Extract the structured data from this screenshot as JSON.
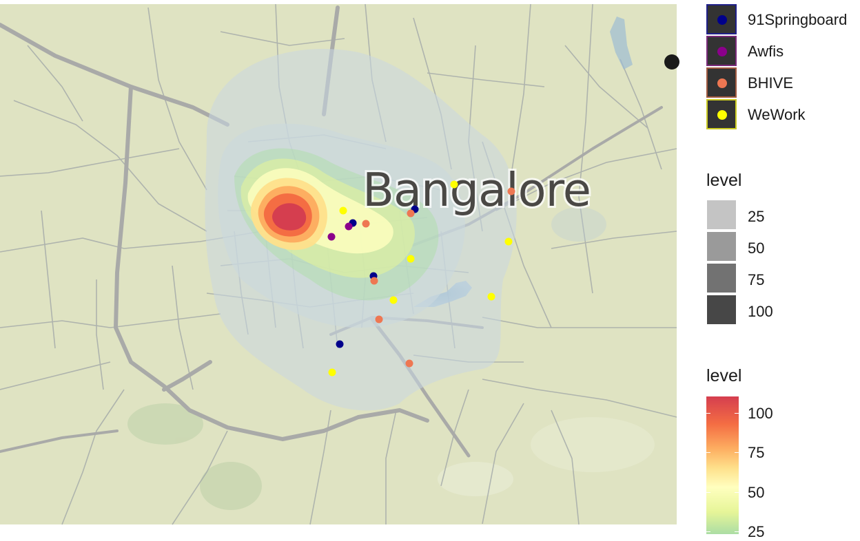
{
  "map": {
    "city_label": "Bangalore",
    "colors": {
      "land": "#dfe3c2",
      "road": "#9ea4a6",
      "highway": "#a9aaa8",
      "water": "#9cbcd3"
    }
  },
  "points": {
    "series": [
      {
        "name": "91Springboard",
        "color": "#00008b",
        "border": "#20208a"
      },
      {
        "name": "Awfis",
        "color": "#8b008b",
        "border": "#7a2a7a"
      },
      {
        "name": "BHIVE",
        "color": "#ee7752",
        "border": "#a15a40"
      },
      {
        "name": "WeWork",
        "color": "#ffff00",
        "border": "#cccc22"
      }
    ]
  },
  "legends": {
    "series": {
      "items": [
        "91Springboard",
        "Awfis",
        "BHIVE",
        "WeWork"
      ]
    },
    "alpha_level": {
      "title": "level",
      "items": [
        {
          "label": "25",
          "color": "#c4c4c4"
        },
        {
          "label": "50",
          "color": "#9a9a9a"
        },
        {
          "label": "75",
          "color": "#727272"
        },
        {
          "label": "100",
          "color": "#474747"
        }
      ]
    },
    "fill_level": {
      "title": "level",
      "palette": [
        "#d53e4f",
        "#f46d43",
        "#fdae61",
        "#fee08b",
        "#ffffbf",
        "#e6f598",
        "#abdda4"
      ],
      "ticks": [
        "100",
        "75",
        "50",
        "25"
      ]
    }
  }
}
